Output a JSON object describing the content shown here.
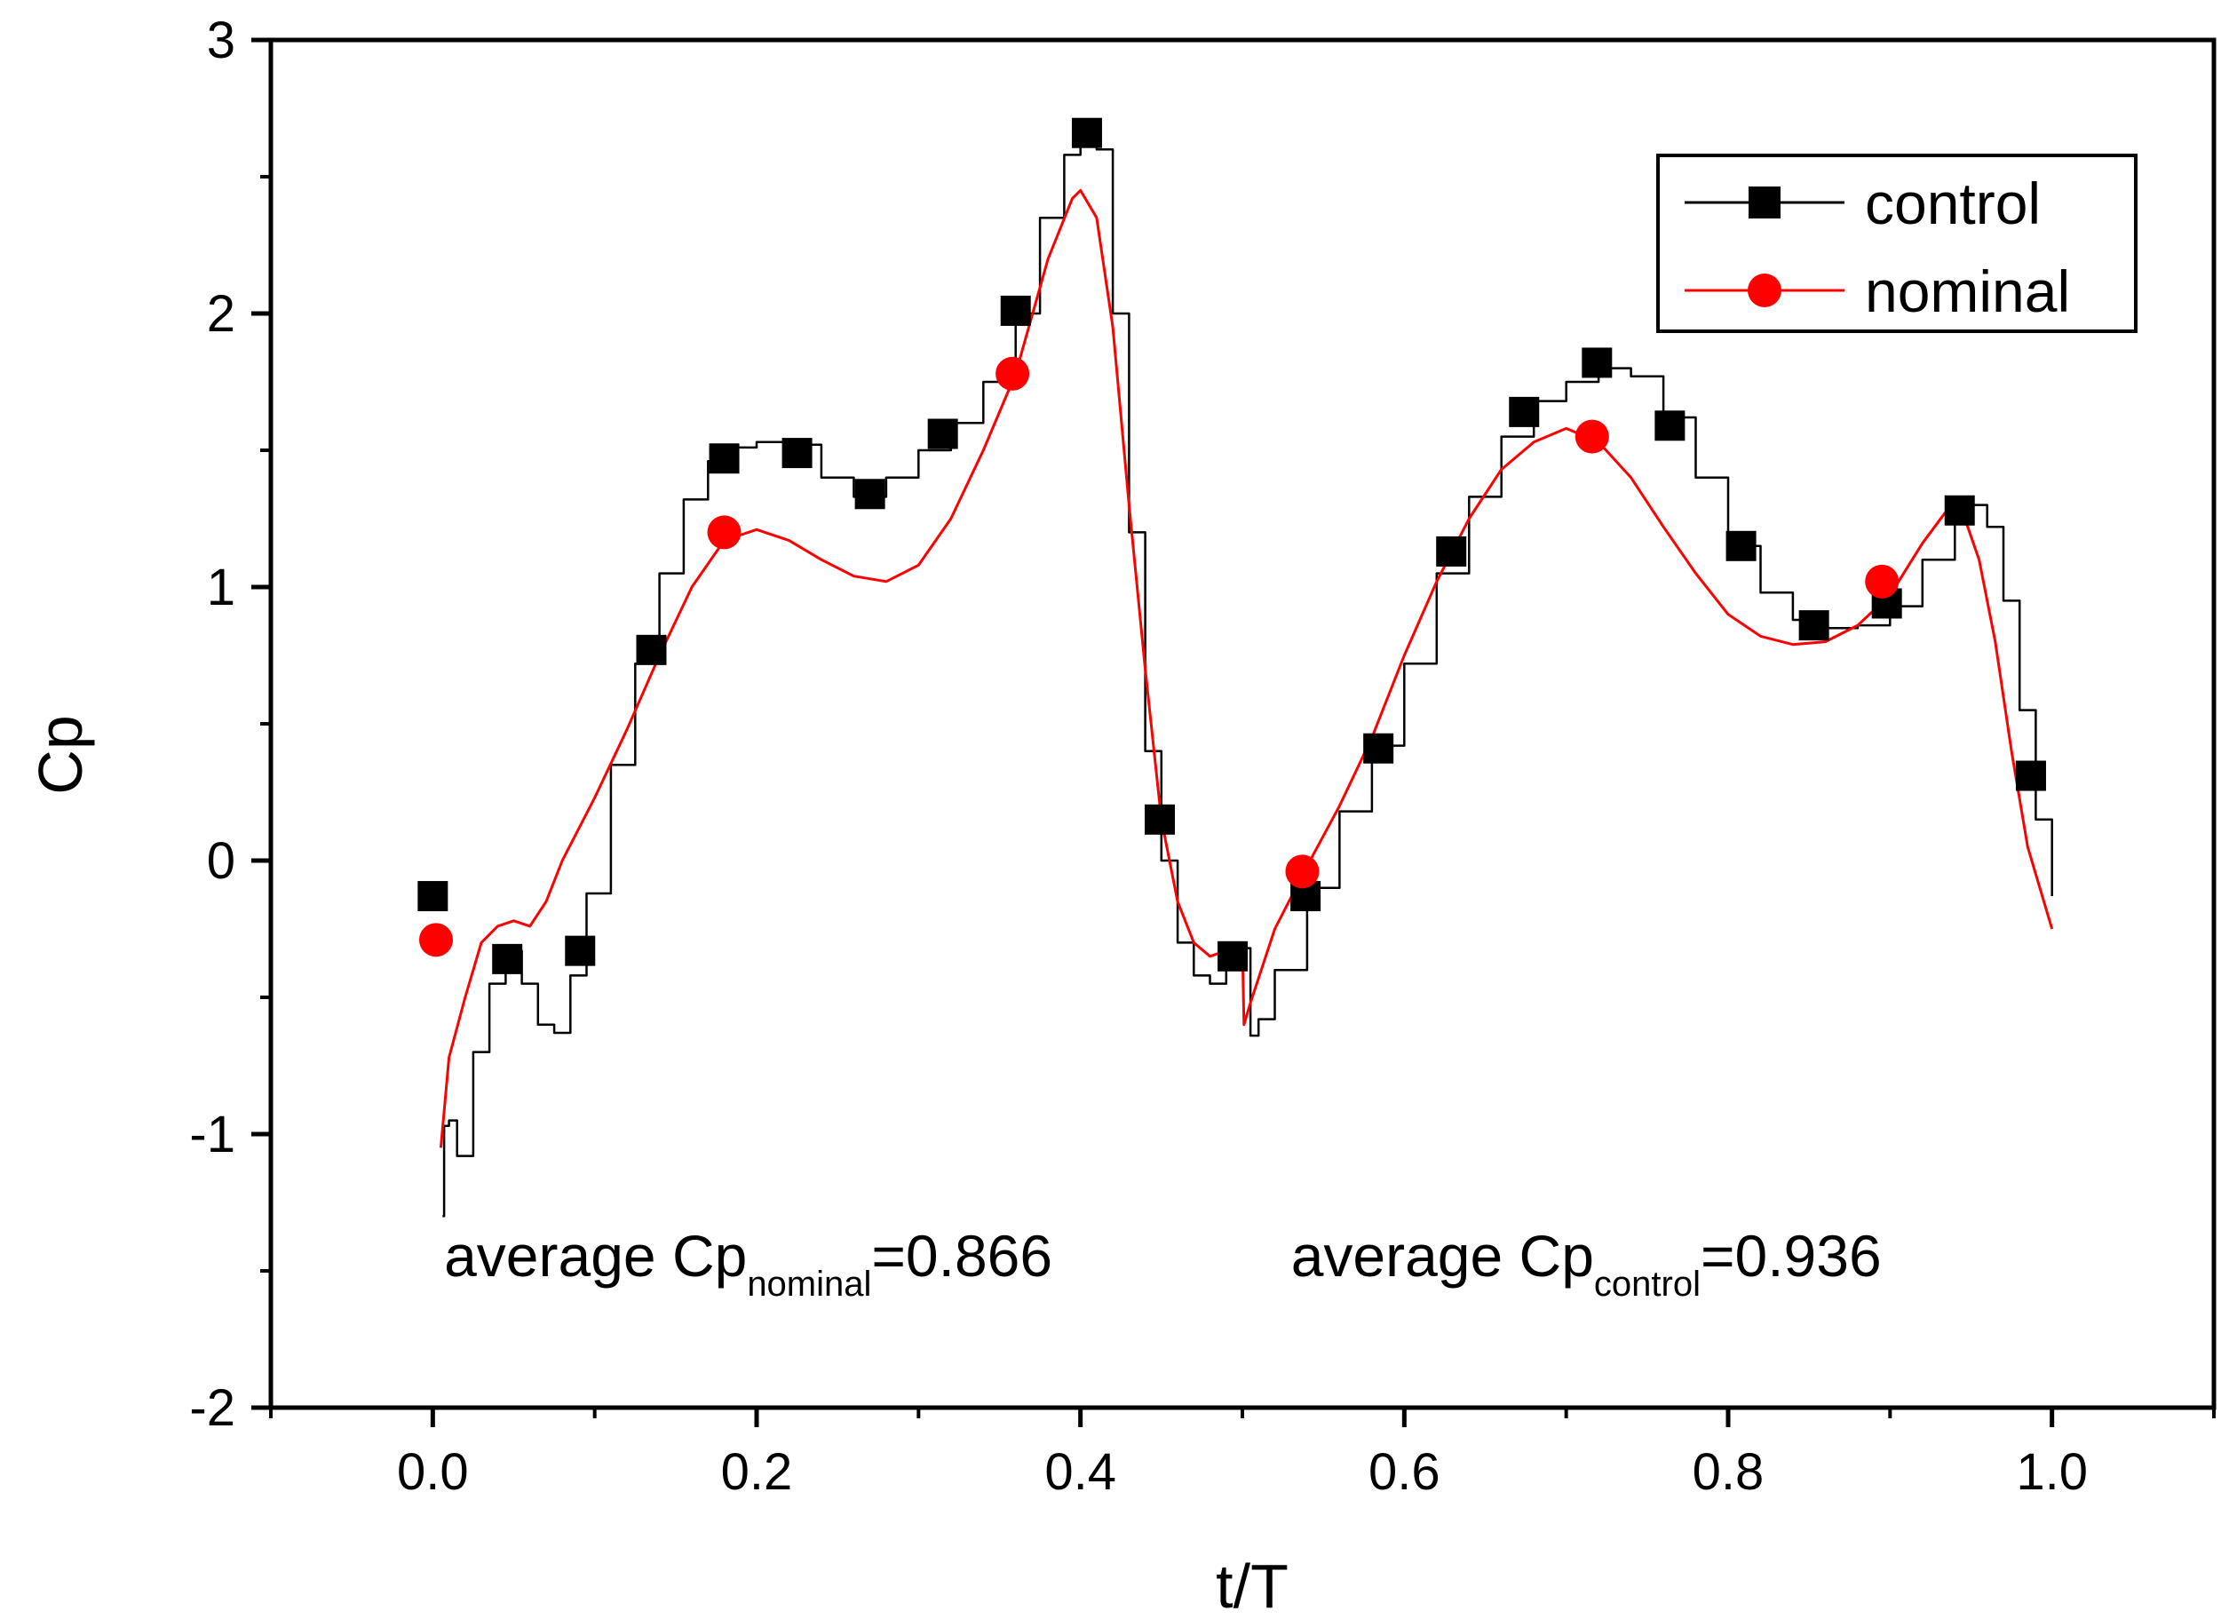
{
  "chart_data": {
    "type": "line",
    "title": "",
    "xlabel": "t/T",
    "ylabel": "Cp",
    "xlim": [
      -0.1,
      1.1
    ],
    "ylim": [
      -2,
      3
    ],
    "x_ticks": [
      0.0,
      0.2,
      0.4,
      0.6,
      0.8,
      1.0
    ],
    "x_tick_labels": [
      "0.0",
      "0.2",
      "0.4",
      "0.6",
      "0.8",
      "1.0"
    ],
    "y_ticks": [
      -2,
      -1,
      0,
      1,
      2,
      3
    ],
    "y_tick_labels": [
      "-2",
      "-1",
      "0",
      "1",
      "2",
      "3"
    ],
    "grid": false,
    "legend_position": "top-right",
    "series": [
      {
        "name": "control",
        "color": "#000000",
        "marker": "square",
        "line": {
          "x": [
            0.006,
            0.007,
            0.01,
            0.015,
            0.025,
            0.035,
            0.045,
            0.055,
            0.065,
            0.075,
            0.085,
            0.095,
            0.11,
            0.125,
            0.14,
            0.155,
            0.17,
            0.185,
            0.2,
            0.22,
            0.24,
            0.26,
            0.28,
            0.3,
            0.32,
            0.34,
            0.36,
            0.375,
            0.39,
            0.4,
            0.41,
            0.42,
            0.43,
            0.44,
            0.45,
            0.46,
            0.47,
            0.48,
            0.49,
            0.5,
            0.505,
            0.51,
            0.52,
            0.54,
            0.56,
            0.58,
            0.6,
            0.62,
            0.64,
            0.66,
            0.68,
            0.7,
            0.72,
            0.74,
            0.76,
            0.78,
            0.8,
            0.82,
            0.84,
            0.86,
            0.88,
            0.9,
            0.92,
            0.94,
            0.95,
            0.96,
            0.97,
            0.98,
            0.99,
            1.0
          ],
          "y": [
            -1.3,
            -0.97,
            -0.95,
            -1.08,
            -0.7,
            -0.45,
            -0.33,
            -0.45,
            -0.6,
            -0.63,
            -0.42,
            -0.12,
            0.35,
            0.72,
            1.05,
            1.32,
            1.46,
            1.51,
            1.53,
            1.52,
            1.4,
            1.33,
            1.4,
            1.5,
            1.6,
            1.75,
            2.0,
            2.35,
            2.58,
            2.66,
            2.6,
            2.0,
            1.2,
            0.4,
            0.0,
            -0.3,
            -0.42,
            -0.45,
            -0.4,
            -0.32,
            -0.64,
            -0.58,
            -0.4,
            -0.1,
            0.18,
            0.42,
            0.72,
            1.05,
            1.33,
            1.55,
            1.68,
            1.75,
            1.8,
            1.77,
            1.62,
            1.4,
            1.15,
            0.98,
            0.88,
            0.85,
            0.86,
            0.93,
            1.1,
            1.28,
            1.3,
            1.22,
            0.95,
            0.55,
            0.15,
            -0.13
          ]
        },
        "markers": {
          "x": [
            0.0,
            0.046,
            0.091,
            0.135,
            0.18,
            0.225,
            0.27,
            0.315,
            0.36,
            0.404,
            0.449,
            0.494,
            0.539,
            0.584,
            0.629,
            0.674,
            0.719,
            0.764,
            0.808,
            0.853,
            0.898,
            0.943,
            0.987
          ],
          "y": [
            -0.13,
            -0.36,
            -0.33,
            0.77,
            1.47,
            1.49,
            1.34,
            1.56,
            2.01,
            2.66,
            0.15,
            -0.35,
            -0.13,
            0.41,
            1.13,
            1.64,
            1.82,
            1.59,
            1.15,
            0.86,
            0.94,
            1.28,
            0.31
          ]
        }
      },
      {
        "name": "nominal",
        "color": "#ff0000",
        "marker": "circle",
        "line": {
          "x": [
            0.005,
            0.01,
            0.02,
            0.03,
            0.04,
            0.05,
            0.06,
            0.07,
            0.08,
            0.1,
            0.12,
            0.14,
            0.16,
            0.18,
            0.2,
            0.22,
            0.24,
            0.26,
            0.28,
            0.3,
            0.32,
            0.34,
            0.36,
            0.38,
            0.395,
            0.4,
            0.41,
            0.42,
            0.43,
            0.44,
            0.45,
            0.46,
            0.47,
            0.48,
            0.49,
            0.5,
            0.501,
            0.505,
            0.52,
            0.54,
            0.56,
            0.58,
            0.6,
            0.62,
            0.64,
            0.66,
            0.68,
            0.7,
            0.72,
            0.74,
            0.76,
            0.78,
            0.8,
            0.82,
            0.84,
            0.86,
            0.88,
            0.9,
            0.92,
            0.935,
            0.945,
            0.955,
            0.965,
            0.975,
            0.985,
            1.0
          ],
          "y": [
            -1.05,
            -0.72,
            -0.5,
            -0.3,
            -0.24,
            -0.22,
            -0.24,
            -0.15,
            0.0,
            0.23,
            0.48,
            0.75,
            1.0,
            1.17,
            1.21,
            1.17,
            1.1,
            1.04,
            1.02,
            1.08,
            1.25,
            1.5,
            1.78,
            2.2,
            2.42,
            2.45,
            2.35,
            1.95,
            1.3,
            0.7,
            0.15,
            -0.15,
            -0.3,
            -0.35,
            -0.33,
            -0.3,
            -0.6,
            -0.52,
            -0.25,
            -0.02,
            0.2,
            0.45,
            0.75,
            1.02,
            1.25,
            1.43,
            1.53,
            1.58,
            1.53,
            1.4,
            1.22,
            1.05,
            0.9,
            0.82,
            0.79,
            0.8,
            0.86,
            0.97,
            1.16,
            1.28,
            1.27,
            1.1,
            0.8,
            0.4,
            0.05,
            -0.25
          ]
        },
        "markers": {
          "x": [
            0.002,
            0.18,
            0.358,
            0.537,
            0.716,
            0.895
          ],
          "y": [
            -0.29,
            1.2,
            1.78,
            -0.04,
            1.55,
            1.02
          ]
        }
      }
    ],
    "annotations": [
      {
        "prefix": "average Cp",
        "subscript": "nominal",
        "suffix": "=0.866",
        "anchor_x": 0.007,
        "anchor_y": -1.52
      },
      {
        "prefix": "average Cp",
        "subscript": "control",
        "suffix": "=0.936",
        "anchor_x": 0.53,
        "anchor_y": -1.52
      }
    ]
  }
}
